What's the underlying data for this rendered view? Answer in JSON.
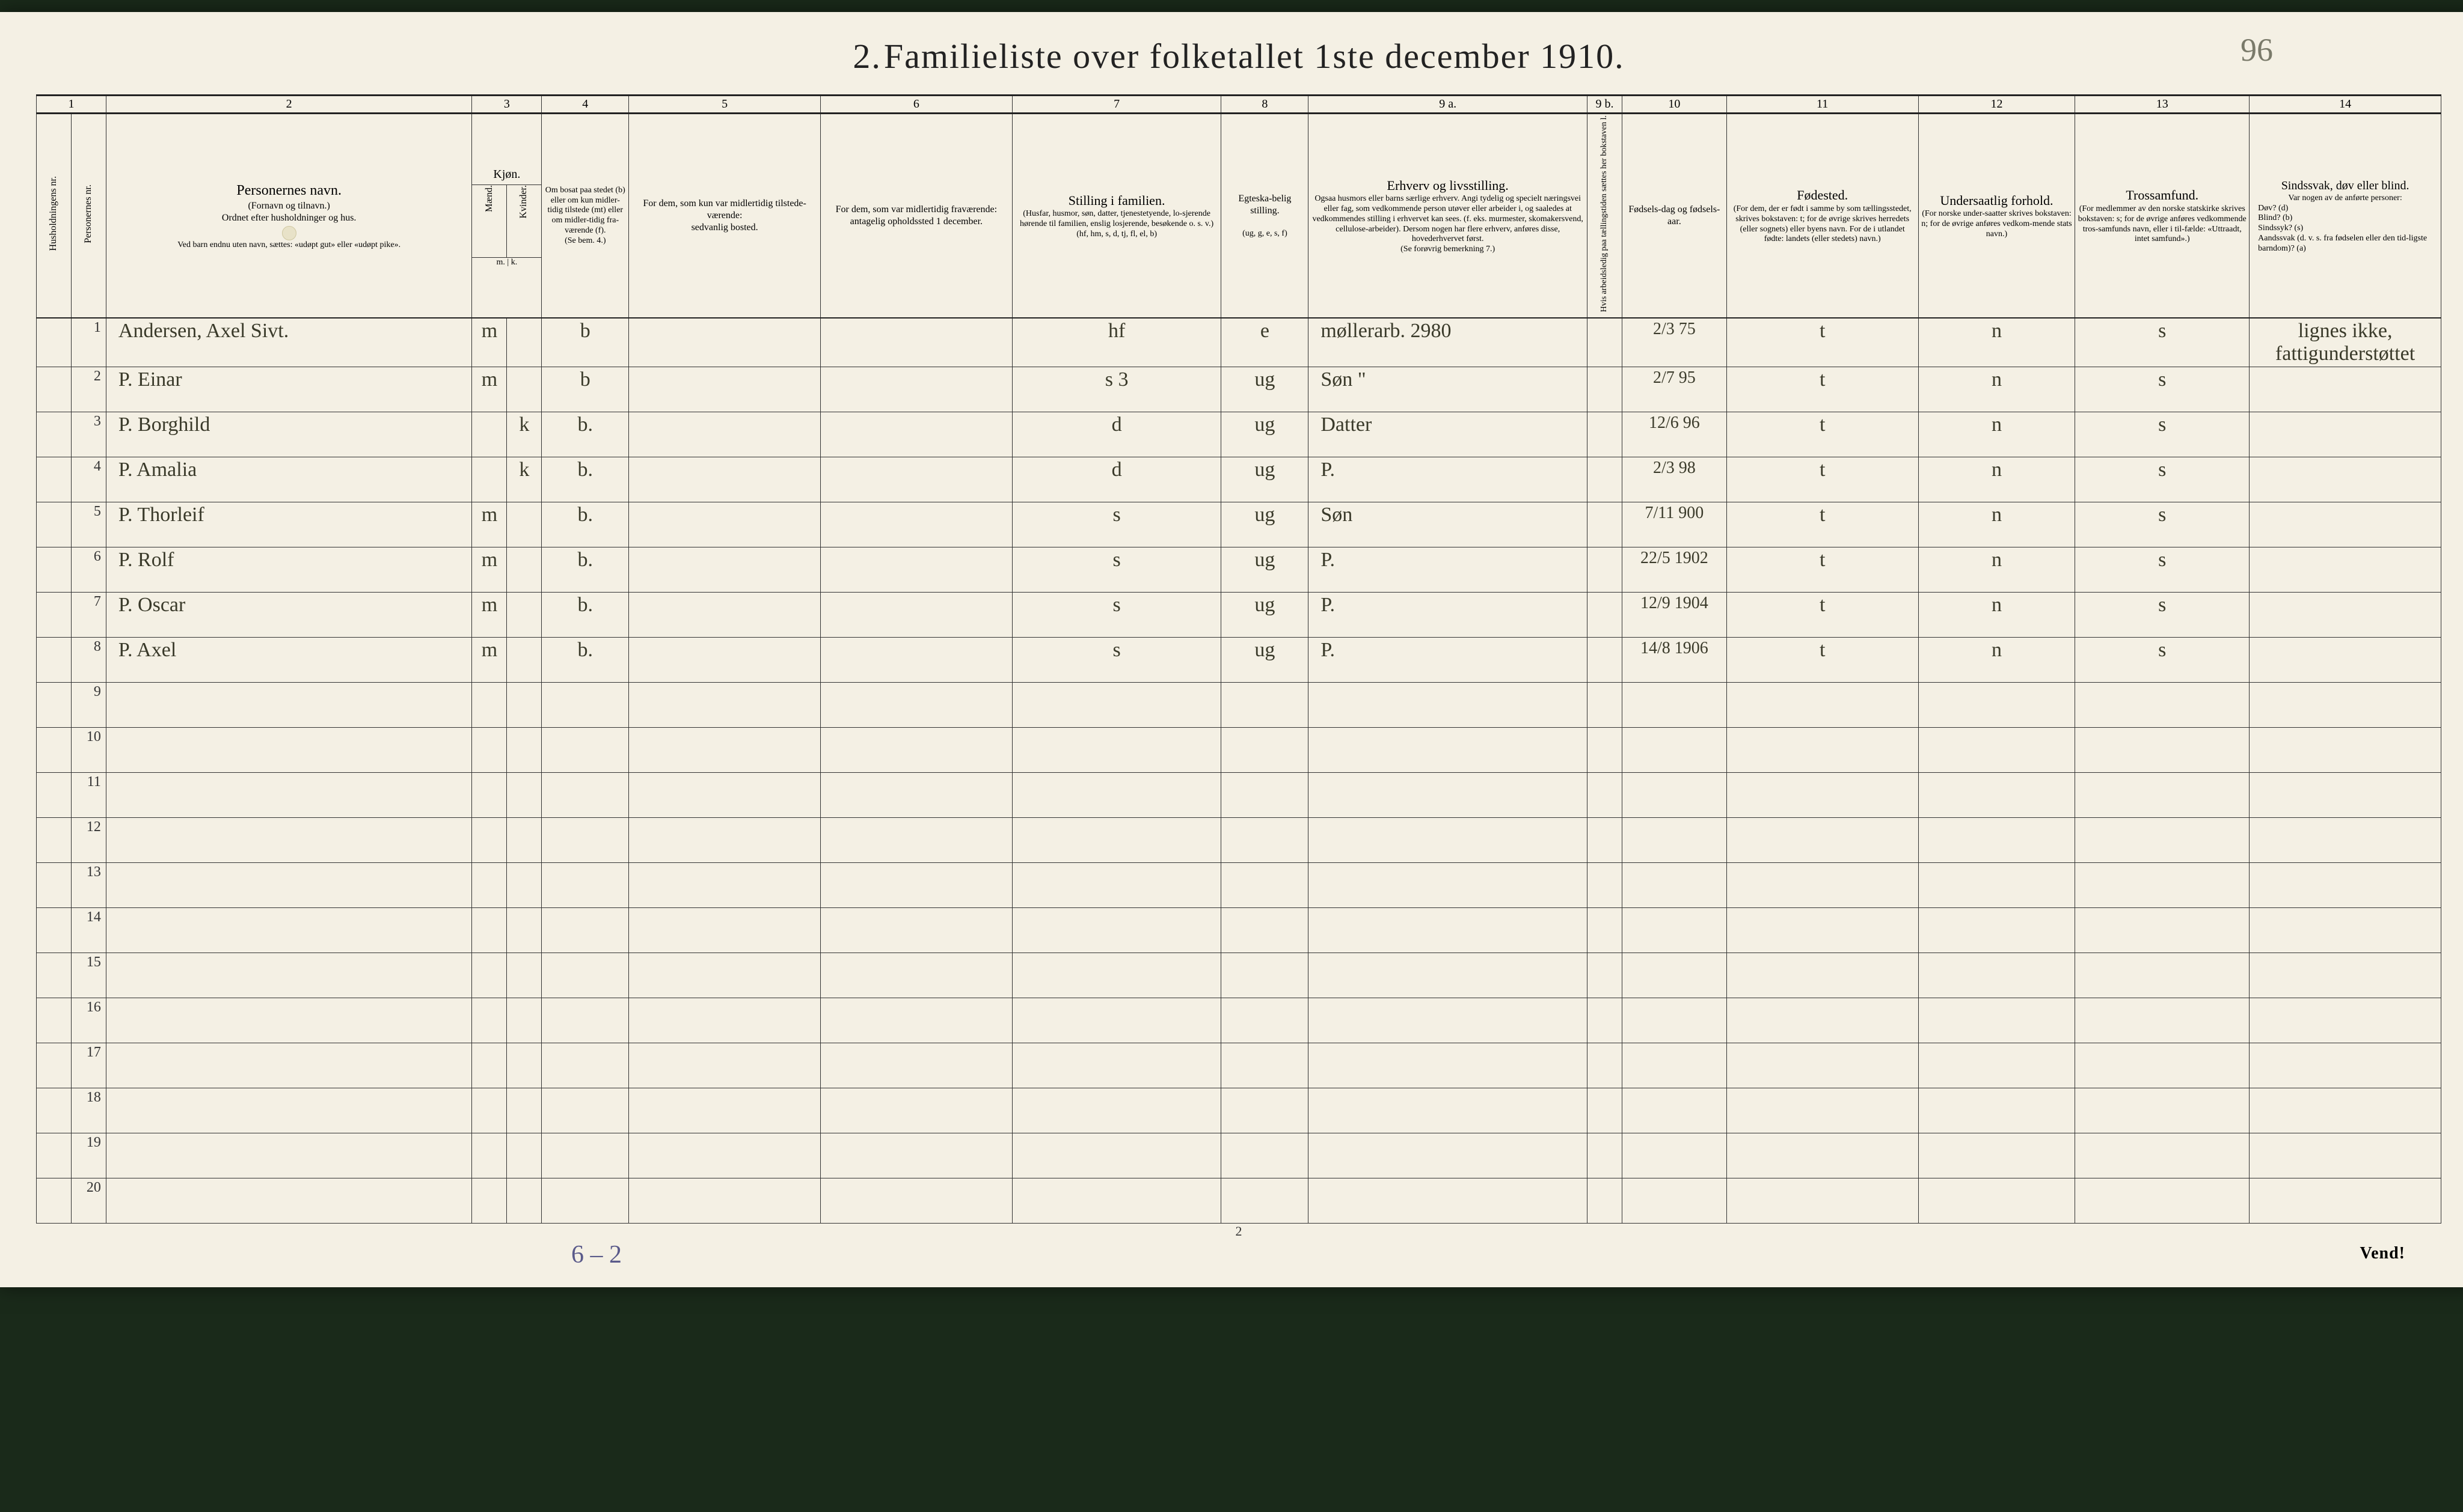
{
  "title_prefix": "2.",
  "title": "Familieliste over folketallet 1ste december 1910.",
  "title_annotation": "96",
  "columns": {
    "numbers": [
      "1",
      "2",
      "3",
      "4",
      "5",
      "6",
      "7",
      "8",
      "9 a.",
      "9 b.",
      "10",
      "11",
      "12",
      "13",
      "14"
    ],
    "c1a": "Husholdningens nr.",
    "c1b": "Personernes nr.",
    "c2_title": "Personernes navn.",
    "c2_sub1": "(Fornavn og tilnavn.)",
    "c2_sub2": "Ordnet efter husholdninger og hus.",
    "c2_sub3": "Ved barn endnu uten navn, sættes: «udøpt gut» eller «udøpt pike».",
    "c3_title": "Kjøn.",
    "c3a": "Mænd.",
    "c3b": "Kvinder.",
    "c3_foot": "m. | k.",
    "c4_title": "Om bosat paa stedet (b) eller om kun midler-tidig tilstede (mt) eller om midler-tidig fra-værende (f).",
    "c4_foot": "(Se bem. 4.)",
    "c5_title": "For dem, som kun var midlertidig tilstede-værende:",
    "c5_sub": "sedvanlig bosted.",
    "c6_title": "For dem, som var midlertidig fraværende:",
    "c6_sub": "antagelig opholdssted 1 december.",
    "c7_title": "Stilling i familien.",
    "c7_sub": "(Husfar, husmor, søn, datter, tjenestetyende, lo-sjerende hørende til familien, enslig losjerende, besøkende o. s. v.)",
    "c7_foot": "(hf, hm, s, d, tj, fl, el, b)",
    "c8_title": "Egteska-belig stilling.",
    "c8_foot": "(ug, g, e, s, f)",
    "c9a_title": "Erhverv og livsstilling.",
    "c9a_sub": "Ogsaa husmors eller barns særlige erhverv. Angi tydelig og specielt næringsvei eller fag, som vedkommende person utøver eller arbeider i, og saaledes at vedkommendes stilling i erhvervet kan sees. (f. eks. murmester, skomakersvend, cellulose-arbeider). Dersom nogen har flere erhverv, anføres disse, hovederhvervet først.",
    "c9a_foot": "(Se forøvrig bemerkning 7.)",
    "c9b": "Hvis arbeidsledig paa tællingstiden sættes her bokstaven l.",
    "c10_title": "Fødsels-dag og fødsels-aar.",
    "c11_title": "Fødested.",
    "c11_sub": "(For dem, der er født i samme by som tællingsstedet, skrives bokstaven: t; for de øvrige skrives herredets (eller sognets) eller byens navn. For de i utlandet fødte: landets (eller stedets) navn.)",
    "c12_title": "Undersaatlig forhold.",
    "c12_sub": "(For norske under-saatter skrives bokstaven: n; for de øvrige anføres vedkom-mende stats navn.)",
    "c13_title": "Trossamfund.",
    "c13_sub": "(For medlemmer av den norske statskirke skrives bokstaven: s; for de øvrige anføres vedkommende tros-samfunds navn, eller i til-fælde: «Uttraadt, intet samfund».)",
    "c14_title": "Sindssvak, døv eller blind.",
    "c14_sub": "Var nogen av de anførte personer:",
    "c14_l1": "Døv? (d)",
    "c14_l2": "Blind? (b)",
    "c14_l3": "Sindssyk? (s)",
    "c14_l4": "Aandssvak (d. v. s. fra fødselen eller den tid-ligste barndom)? (a)"
  },
  "rows": [
    {
      "n": "1",
      "name": "Andersen, Axel Sivt.",
      "sex": "m",
      "res": "b",
      "pos": "hf",
      "mar": "e",
      "occ": "møllerarb.   2980",
      "birth": "2/3 75",
      "bp": "t",
      "nat": "n",
      "rel": "s",
      "note": "lignes ikke, fattigunderstøttet"
    },
    {
      "n": "2",
      "name": "P.   Einar",
      "sex": "m",
      "res": "b",
      "pos": "s       3",
      "mar": "ug",
      "occ": "Søn           \"",
      "birth": "2/7 95",
      "bp": "t",
      "nat": "n",
      "rel": "s",
      "note": ""
    },
    {
      "n": "3",
      "name": "P.   Borghild",
      "sex": "k",
      "res": "b.",
      "pos": "d",
      "mar": "ug",
      "occ": "Datter",
      "birth": "12/6 96",
      "bp": "t",
      "nat": "n",
      "rel": "s",
      "note": ""
    },
    {
      "n": "4",
      "name": "P.   Amalia",
      "sex": "k",
      "res": "b.",
      "pos": "d",
      "mar": "ug",
      "occ": "P.",
      "birth": "2/3 98",
      "bp": "t",
      "nat": "n",
      "rel": "s",
      "note": ""
    },
    {
      "n": "5",
      "name": "P.   Thorleif",
      "sex": "m",
      "res": "b.",
      "pos": "s",
      "mar": "ug",
      "occ": "Søn",
      "birth": "7/11 900",
      "bp": "t",
      "nat": "n",
      "rel": "s",
      "note": ""
    },
    {
      "n": "6",
      "name": "P.   Rolf",
      "sex": "m",
      "res": "b.",
      "pos": "s",
      "mar": "ug",
      "occ": "P.",
      "birth": "22/5 1902",
      "bp": "t",
      "nat": "n",
      "rel": "s",
      "note": ""
    },
    {
      "n": "7",
      "name": "P.   Oscar",
      "sex": "m",
      "res": "b.",
      "pos": "s",
      "mar": "ug",
      "occ": "P.",
      "birth": "12/9 1904",
      "bp": "t",
      "nat": "n",
      "rel": "s",
      "note": ""
    },
    {
      "n": "8",
      "name": "P.   Axel",
      "sex": "m",
      "res": "b.",
      "pos": "s",
      "mar": "ug",
      "occ": "P.",
      "birth": "14/8 1906",
      "bp": "t",
      "nat": "n",
      "rel": "s",
      "note": ""
    },
    {
      "n": "9"
    },
    {
      "n": "10"
    },
    {
      "n": "11"
    },
    {
      "n": "12"
    },
    {
      "n": "13"
    },
    {
      "n": "14"
    },
    {
      "n": "15"
    },
    {
      "n": "16"
    },
    {
      "n": "17"
    },
    {
      "n": "18"
    },
    {
      "n": "19"
    },
    {
      "n": "20"
    }
  ],
  "footer_note": "6 – 2",
  "folio": "2",
  "vend": "Vend!",
  "colors": {
    "page_bg": "#f4f0e4",
    "ink": "#222222",
    "script": "#3a3a2a",
    "pencil": "#5a5a8a",
    "outer_bg": "#1a2a1a"
  }
}
